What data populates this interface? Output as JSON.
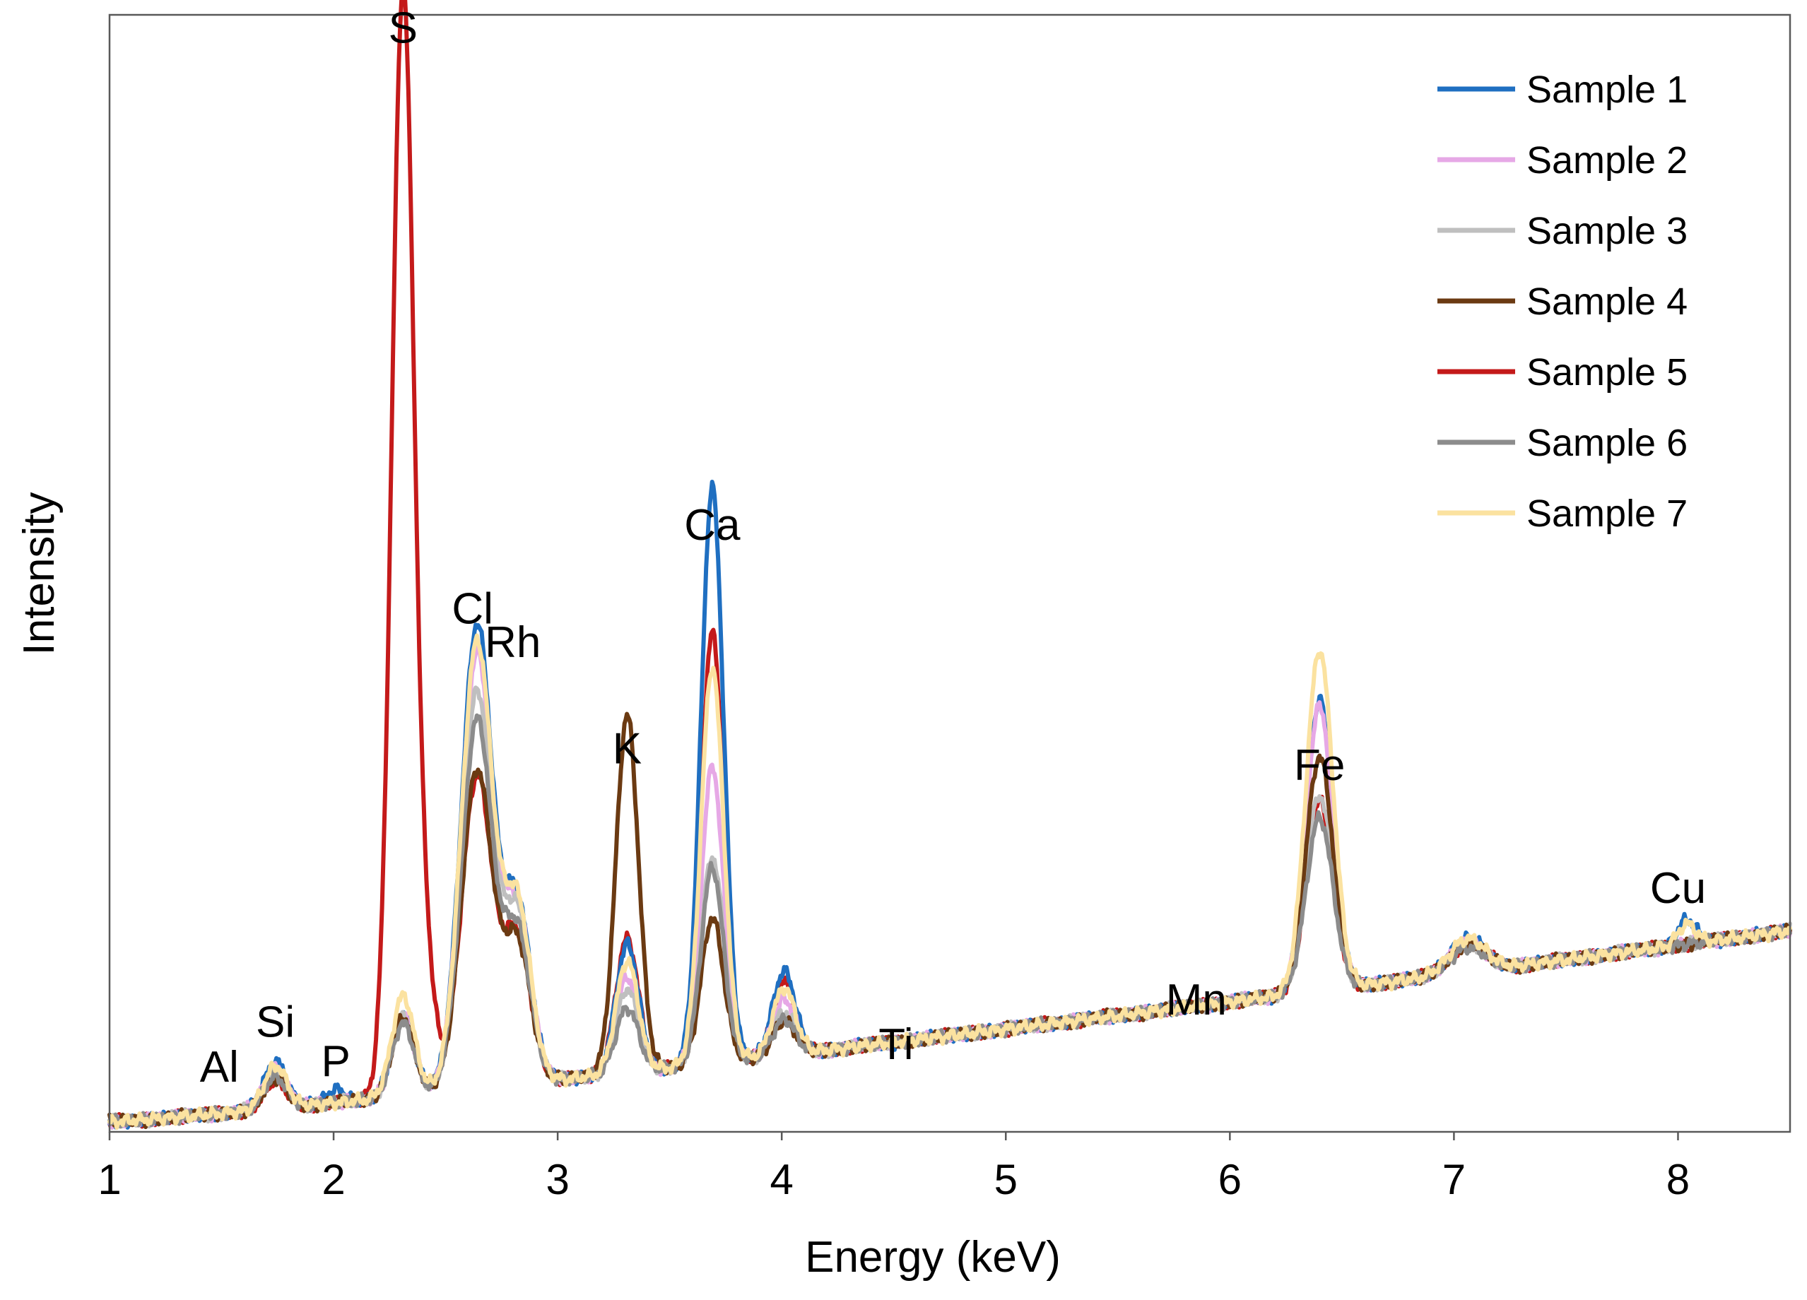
{
  "chart_data": {
    "type": "line",
    "title": "",
    "xlabel": "Energy (keV)",
    "ylabel": "Intensity",
    "xlim": [
      1,
      8.5
    ],
    "ylim": [
      0,
      100
    ],
    "xticks": [
      1,
      2,
      3,
      4,
      5,
      6,
      7,
      8
    ],
    "yticks_shown": false,
    "grid": false,
    "legend_position": "top-right",
    "peak_labels": [
      {
        "text": "Al",
        "energy": 1.49,
        "intensity": 4.5
      },
      {
        "text": "Si",
        "energy": 1.74,
        "intensity": 8.5
      },
      {
        "text": "P",
        "energy": 2.01,
        "intensity": 5.0
      },
      {
        "text": "S",
        "energy": 2.31,
        "intensity": 97.5
      },
      {
        "text": "Cl",
        "energy": 2.62,
        "intensity": 45.5
      },
      {
        "text": "Rh",
        "energy": 2.8,
        "intensity": 42.5
      },
      {
        "text": "K",
        "energy": 3.31,
        "intensity": 33.0
      },
      {
        "text": "Ca",
        "energy": 3.69,
        "intensity": 53.0
      },
      {
        "text": "Ti",
        "energy": 4.51,
        "intensity": 6.5
      },
      {
        "text": "Mn",
        "energy": 5.85,
        "intensity": 10.5
      },
      {
        "text": "Fe",
        "energy": 6.4,
        "intensity": 31.5
      },
      {
        "text": "Cu",
        "energy": 8.0,
        "intensity": 20.5
      }
    ],
    "baseline": {
      "start": 1.0,
      "end": 8.5,
      "low": 0.9,
      "high": 18.0
    },
    "series": [
      {
        "name": "Sample 1",
        "color": "#1f6fc1",
        "peaks": [
          {
            "energy": 1.74,
            "height": 4.2,
            "width": 0.05
          },
          {
            "energy": 2.01,
            "height": 1.2,
            "width": 0.04
          },
          {
            "energy": 2.31,
            "height": 7.5,
            "width": 0.05
          },
          {
            "energy": 2.64,
            "height": 41.5,
            "width": 0.07
          },
          {
            "energy": 2.82,
            "height": 16.0,
            "width": 0.06
          },
          {
            "energy": 3.31,
            "height": 11.5,
            "width": 0.05
          },
          {
            "energy": 3.69,
            "height": 51.5,
            "width": 0.05
          },
          {
            "energy": 4.01,
            "height": 7.5,
            "width": 0.05
          },
          {
            "energy": 6.4,
            "height": 26.0,
            "width": 0.06
          },
          {
            "energy": 7.06,
            "height": 3.0,
            "width": 0.08
          },
          {
            "energy": 8.04,
            "height": 2.2,
            "width": 0.04
          }
        ]
      },
      {
        "name": "Sample 2",
        "color": "#e6a8e6",
        "peaks": [
          {
            "energy": 1.74,
            "height": 3.6,
            "width": 0.05
          },
          {
            "energy": 2.31,
            "height": 7.0,
            "width": 0.05
          },
          {
            "energy": 2.64,
            "height": 39.0,
            "width": 0.07
          },
          {
            "energy": 2.82,
            "height": 15.5,
            "width": 0.06
          },
          {
            "energy": 3.31,
            "height": 8.5,
            "width": 0.05
          },
          {
            "energy": 3.69,
            "height": 26.5,
            "width": 0.05
          },
          {
            "energy": 4.01,
            "height": 5.0,
            "width": 0.05
          },
          {
            "energy": 6.4,
            "height": 25.5,
            "width": 0.06
          },
          {
            "energy": 7.06,
            "height": 2.6,
            "width": 0.08
          }
        ]
      },
      {
        "name": "Sample 3",
        "color": "#bfbfbf",
        "peaks": [
          {
            "energy": 1.74,
            "height": 3.2,
            "width": 0.05
          },
          {
            "energy": 2.31,
            "height": 7.0,
            "width": 0.05
          },
          {
            "energy": 2.64,
            "height": 35.5,
            "width": 0.07
          },
          {
            "energy": 2.82,
            "height": 15.0,
            "width": 0.06
          },
          {
            "energy": 3.31,
            "height": 7.5,
            "width": 0.05
          },
          {
            "energy": 3.69,
            "height": 18.5,
            "width": 0.05
          },
          {
            "energy": 4.01,
            "height": 3.8,
            "width": 0.05
          },
          {
            "energy": 6.4,
            "height": 17.5,
            "width": 0.06
          },
          {
            "energy": 7.06,
            "height": 2.4,
            "width": 0.08
          }
        ]
      },
      {
        "name": "Sample 4",
        "color": "#6b3a12",
        "peaks": [
          {
            "energy": 1.74,
            "height": 2.6,
            "width": 0.05
          },
          {
            "energy": 2.31,
            "height": 7.0,
            "width": 0.05
          },
          {
            "energy": 2.64,
            "height": 28.5,
            "width": 0.07
          },
          {
            "energy": 2.82,
            "height": 12.5,
            "width": 0.06
          },
          {
            "energy": 3.31,
            "height": 32.0,
            "width": 0.05
          },
          {
            "energy": 3.69,
            "height": 13.0,
            "width": 0.05
          },
          {
            "energy": 4.01,
            "height": 3.0,
            "width": 0.05
          },
          {
            "energy": 6.4,
            "height": 21.0,
            "width": 0.06
          },
          {
            "energy": 7.06,
            "height": 2.5,
            "width": 0.08
          }
        ]
      },
      {
        "name": "Sample 5",
        "color": "#c41a1a",
        "peaks": [
          {
            "energy": 1.74,
            "height": 2.4,
            "width": 0.05
          },
          {
            "energy": 2.31,
            "height": 99.5,
            "width": 0.05
          },
          {
            "energy": 2.42,
            "height": 8.0,
            "width": 0.04
          },
          {
            "energy": 2.64,
            "height": 28.0,
            "width": 0.07
          },
          {
            "energy": 2.82,
            "height": 13.0,
            "width": 0.06
          },
          {
            "energy": 3.31,
            "height": 12.0,
            "width": 0.05
          },
          {
            "energy": 3.69,
            "height": 38.5,
            "width": 0.05
          },
          {
            "energy": 4.01,
            "height": 6.5,
            "width": 0.05
          },
          {
            "energy": 6.4,
            "height": 17.0,
            "width": 0.06
          },
          {
            "energy": 7.06,
            "height": 2.6,
            "width": 0.08
          }
        ]
      },
      {
        "name": "Sample 6",
        "color": "#8c8c8c",
        "peaks": [
          {
            "energy": 1.74,
            "height": 2.8,
            "width": 0.05
          },
          {
            "energy": 2.31,
            "height": 6.5,
            "width": 0.05
          },
          {
            "energy": 2.64,
            "height": 33.0,
            "width": 0.07
          },
          {
            "energy": 2.82,
            "height": 13.5,
            "width": 0.06
          },
          {
            "energy": 3.31,
            "height": 5.8,
            "width": 0.05
          },
          {
            "energy": 3.69,
            "height": 17.5,
            "width": 0.05
          },
          {
            "energy": 4.01,
            "height": 3.2,
            "width": 0.05
          },
          {
            "energy": 6.4,
            "height": 15.5,
            "width": 0.06
          },
          {
            "energy": 7.06,
            "height": 2.2,
            "width": 0.08
          }
        ]
      },
      {
        "name": "Sample 7",
        "color": "#fbe2a0",
        "peaks": [
          {
            "energy": 1.74,
            "height": 3.8,
            "width": 0.05
          },
          {
            "energy": 2.31,
            "height": 9.0,
            "width": 0.05
          },
          {
            "energy": 2.64,
            "height": 40.0,
            "width": 0.07
          },
          {
            "energy": 2.82,
            "height": 16.0,
            "width": 0.06
          },
          {
            "energy": 3.31,
            "height": 10.0,
            "width": 0.05
          },
          {
            "energy": 3.69,
            "height": 35.5,
            "width": 0.05
          },
          {
            "energy": 4.01,
            "height": 6.0,
            "width": 0.05
          },
          {
            "energy": 6.4,
            "height": 30.5,
            "width": 0.06
          },
          {
            "energy": 7.06,
            "height": 3.0,
            "width": 0.08
          },
          {
            "energy": 8.04,
            "height": 1.8,
            "width": 0.04
          }
        ]
      }
    ]
  }
}
